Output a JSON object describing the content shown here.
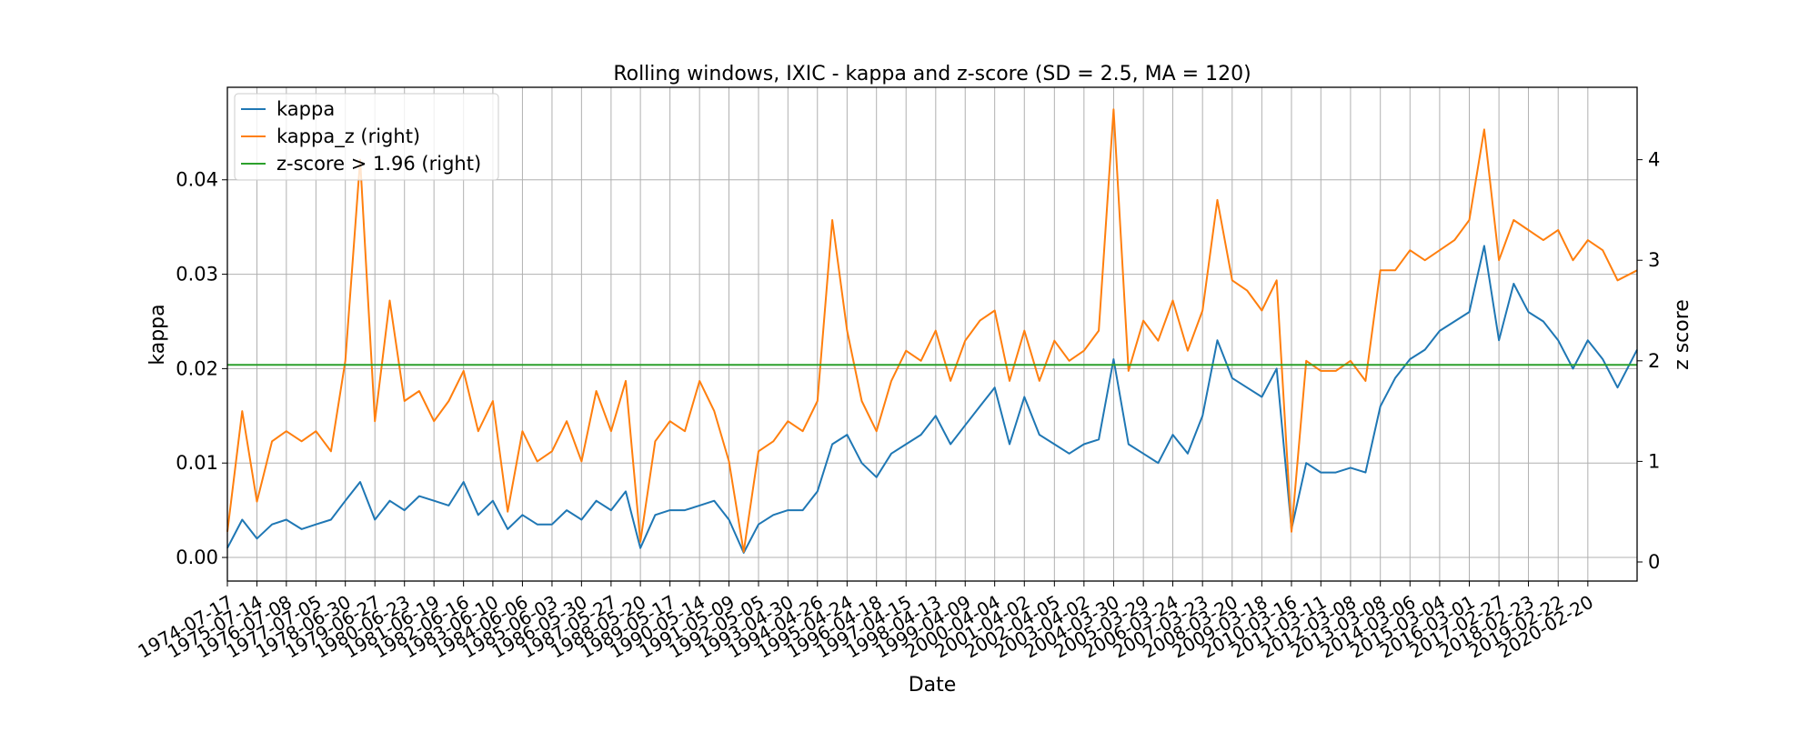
{
  "chart_data": {
    "type": "line",
    "title": "Rolling windows, IXIC - kappa and z-score (SD = 2.5, MA = 120)",
    "xlabel": "Date",
    "ylabel": "kappa",
    "ylabel_right": "z score",
    "ylim": [
      -0.0025,
      0.0498
    ],
    "ylim_right": [
      -0.19,
      4.72
    ],
    "yticks": [
      "0.00",
      "0.01",
      "0.02",
      "0.03",
      "0.04"
    ],
    "yticks_right": [
      "0",
      "1",
      "2",
      "3",
      "4"
    ],
    "xlim": [
      "1974-07-17",
      "2021-10-15"
    ],
    "grid": true,
    "legend": "upper-left",
    "x_ticks": [
      "1974-07-17",
      "1975-07-14",
      "1976-07-08",
      "1977-07-05",
      "1978-06-30",
      "1979-06-27",
      "1980-06-23",
      "1981-06-19",
      "1982-06-16",
      "1983-06-10",
      "1984-06-06",
      "1985-06-03",
      "1986-05-30",
      "1987-05-27",
      "1988-05-20",
      "1989-05-17",
      "1990-05-14",
      "1991-05-09",
      "1992-05-05",
      "1993-04-30",
      "1994-04-26",
      "1995-04-24",
      "1996-04-18",
      "1997-04-15",
      "1998-04-13",
      "1999-04-09",
      "2000-04-04",
      "2001-04-02",
      "2002-04-05",
      "2003-04-02",
      "2004-03-30",
      "2005-03-29",
      "2006-03-24",
      "2007-03-23",
      "2008-03-20",
      "2009-03-18",
      "2010-03-16",
      "2011-03-11",
      "2012-03-08",
      "2013-03-08",
      "2014-03-06",
      "2015-03-04",
      "2016-03-01",
      "2017-02-27",
      "2018-02-23",
      "2019-02-22",
      "2020-02-20"
    ],
    "series": [
      {
        "name": "kappa",
        "axis": "left",
        "color": "#1f77b4",
        "x": [
          "1974-07-17",
          "1975-01-15",
          "1975-07-14",
          "1976-01-15",
          "1976-07-08",
          "1977-01-10",
          "1977-07-05",
          "1978-01-05",
          "1978-06-30",
          "1978-12-28",
          "1979-06-27",
          "1979-12-25",
          "1980-06-23",
          "1980-12-20",
          "1981-06-19",
          "1981-12-17",
          "1982-06-16",
          "1982-12-13",
          "1983-06-10",
          "1983-12-08",
          "1984-06-06",
          "1984-12-04",
          "1985-06-03",
          "1985-11-30",
          "1986-05-30",
          "1986-11-27",
          "1987-05-27",
          "1987-11-23",
          "1988-05-20",
          "1988-11-17",
          "1989-05-17",
          "1989-11-15",
          "1990-05-14",
          "1990-11-10",
          "1991-05-09",
          "1991-11-06",
          "1992-05-05",
          "1992-11-02",
          "1993-04-30",
          "1993-10-28",
          "1994-04-26",
          "1994-10-25",
          "1995-04-24",
          "1995-10-21",
          "1996-04-18",
          "1996-10-16",
          "1997-04-15",
          "1997-10-14",
          "1998-04-13",
          "1998-10-11",
          "1999-04-09",
          "1999-10-06",
          "2000-04-04",
          "2000-10-03",
          "2001-04-02",
          "2001-10-03",
          "2002-04-05",
          "2002-10-03",
          "2003-04-02",
          "2003-09-30",
          "2004-03-30",
          "2004-09-28",
          "2005-03-29",
          "2005-09-26",
          "2006-03-24",
          "2006-09-23",
          "2007-03-23",
          "2007-09-21",
          "2008-03-20",
          "2008-09-18",
          "2009-03-18",
          "2009-09-16",
          "2010-03-16",
          "2010-09-13",
          "2011-03-11",
          "2011-09-09",
          "2012-03-08",
          "2012-09-07",
          "2013-03-08",
          "2013-09-06",
          "2014-03-06",
          "2014-09-04",
          "2015-03-04",
          "2015-09-01",
          "2016-03-01",
          "2016-08-30",
          "2017-02-27",
          "2017-08-26",
          "2018-02-23",
          "2018-08-24",
          "2019-02-22",
          "2019-08-22",
          "2020-02-20",
          "2020-08-20",
          "2021-02-18",
          "2021-10-15"
        ],
        "y": [
          0.001,
          0.004,
          0.002,
          0.0035,
          0.004,
          0.003,
          0.0035,
          0.004,
          0.006,
          0.008,
          0.004,
          0.006,
          0.005,
          0.0065,
          0.006,
          0.0055,
          0.008,
          0.0045,
          0.006,
          0.003,
          0.0045,
          0.0035,
          0.0035,
          0.005,
          0.004,
          0.006,
          0.005,
          0.007,
          0.001,
          0.0045,
          0.005,
          0.005,
          0.0055,
          0.006,
          0.004,
          0.0005,
          0.0035,
          0.0045,
          0.005,
          0.005,
          0.007,
          0.012,
          0.013,
          0.01,
          0.0085,
          0.011,
          0.012,
          0.013,
          0.015,
          0.012,
          0.014,
          0.016,
          0.018,
          0.012,
          0.017,
          0.013,
          0.012,
          0.011,
          0.012,
          0.0125,
          0.021,
          0.012,
          0.011,
          0.01,
          0.013,
          0.011,
          0.015,
          0.023,
          0.019,
          0.018,
          0.017,
          0.02,
          0.003,
          0.01,
          0.009,
          0.009,
          0.0095,
          0.009,
          0.016,
          0.019,
          0.021,
          0.022,
          0.024,
          0.025,
          0.026,
          0.033,
          0.023,
          0.029,
          0.026,
          0.025,
          0.023,
          0.02,
          0.023,
          0.021,
          0.018,
          0.022
        ]
      },
      {
        "name": "kappa_z (right)",
        "axis": "right",
        "color": "#ff7f0e",
        "x": [
          "1974-07-17",
          "1975-01-15",
          "1975-07-14",
          "1976-01-15",
          "1976-07-08",
          "1977-01-10",
          "1977-07-05",
          "1978-01-05",
          "1978-06-30",
          "1978-12-28",
          "1979-06-27",
          "1979-12-25",
          "1980-06-23",
          "1980-12-20",
          "1981-06-19",
          "1981-12-17",
          "1982-06-16",
          "1982-12-13",
          "1983-06-10",
          "1983-12-08",
          "1984-06-06",
          "1984-12-04",
          "1985-06-03",
          "1985-11-30",
          "1986-05-30",
          "1986-11-27",
          "1987-05-27",
          "1987-11-23",
          "1988-05-20",
          "1988-11-17",
          "1989-05-17",
          "1989-11-15",
          "1990-05-14",
          "1990-11-10",
          "1991-05-09",
          "1991-11-06",
          "1992-05-05",
          "1992-11-02",
          "1993-04-30",
          "1993-10-28",
          "1994-04-26",
          "1994-10-25",
          "1995-04-24",
          "1995-10-21",
          "1996-04-18",
          "1996-10-16",
          "1997-04-15",
          "1997-10-14",
          "1998-04-13",
          "1998-10-11",
          "1999-04-09",
          "1999-10-06",
          "2000-04-04",
          "2000-10-03",
          "2001-04-02",
          "2001-10-03",
          "2002-04-05",
          "2002-10-03",
          "2003-04-02",
          "2003-09-30",
          "2004-03-30",
          "2004-09-28",
          "2005-03-29",
          "2005-09-26",
          "2006-03-24",
          "2006-09-23",
          "2007-03-23",
          "2007-09-21",
          "2008-03-20",
          "2008-09-18",
          "2009-03-18",
          "2009-09-16",
          "2010-03-16",
          "2010-09-13",
          "2011-03-11",
          "2011-09-09",
          "2012-03-08",
          "2012-09-07",
          "2013-03-08",
          "2013-09-06",
          "2014-03-06",
          "2014-09-04",
          "2015-03-04",
          "2015-09-01",
          "2016-03-01",
          "2016-08-30",
          "2017-02-27",
          "2017-08-26",
          "2018-02-23",
          "2018-08-24",
          "2019-02-22",
          "2019-08-22",
          "2020-02-20",
          "2020-08-20",
          "2021-02-18",
          "2021-10-15"
        ],
        "y": [
          0.3,
          1.5,
          0.6,
          1.2,
          1.3,
          1.2,
          1.3,
          1.1,
          2.0,
          4.0,
          1.4,
          2.6,
          1.6,
          1.7,
          1.4,
          1.6,
          1.9,
          1.3,
          1.6,
          0.5,
          1.3,
          1.0,
          1.1,
          1.4,
          1.0,
          1.7,
          1.3,
          1.8,
          0.2,
          1.2,
          1.4,
          1.3,
          1.8,
          1.5,
          1.0,
          0.1,
          1.1,
          1.2,
          1.4,
          1.3,
          1.6,
          3.4,
          2.3,
          1.6,
          1.3,
          1.8,
          2.1,
          2.0,
          2.3,
          1.8,
          2.2,
          2.4,
          2.5,
          1.8,
          2.3,
          1.8,
          2.2,
          2.0,
          2.1,
          2.3,
          4.5,
          1.9,
          2.4,
          2.2,
          2.6,
          2.1,
          2.5,
          3.6,
          2.8,
          2.7,
          2.5,
          2.8,
          0.3,
          2.0,
          1.9,
          1.9,
          2.0,
          1.8,
          2.9,
          2.9,
          3.1,
          3.0,
          3.1,
          3.2,
          3.4,
          4.3,
          3.0,
          3.4,
          3.3,
          3.2,
          3.3,
          3.0,
          3.2,
          3.1,
          2.8,
          2.9
        ]
      },
      {
        "name": "z-score > 1.96 (right)",
        "axis": "right",
        "color": "#2ca02c",
        "x": [
          "1974-07-17",
          "2021-10-15"
        ],
        "y": [
          1.96,
          1.96
        ]
      }
    ]
  }
}
